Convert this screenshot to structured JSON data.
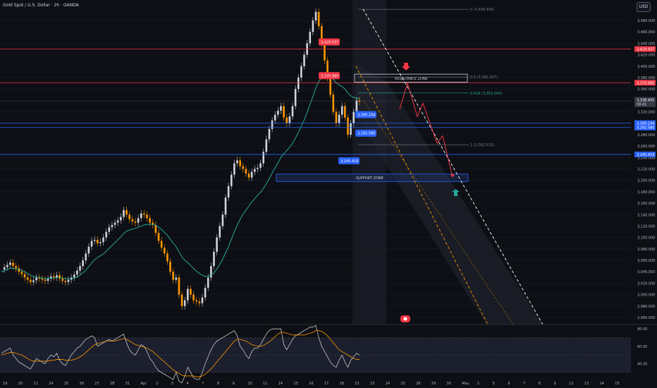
{
  "header": {
    "symbol_title": "Gold Spot / U.S. Dollar · 2h · OANDA",
    "currency": "USD"
  },
  "colors": {
    "background": "#0d0f14",
    "up_candle": "#d1d4dc",
    "down_candle": "#ff9800",
    "ema": "#26a69a",
    "resistance": "#f23645",
    "support": "#2962ff",
    "grid": "#1c2030",
    "rsi": "#c8c8c8",
    "rsi_ma": "#ff9800",
    "price_label_bg": "#363a45"
  },
  "price_scale": {
    "ticks": [
      "3,480.000",
      "3,460.000",
      "3,440.000",
      "3,420.000",
      "3,400.000",
      "3,380.000",
      "3,360.000",
      "3,340.000",
      "3,320.000",
      "3,300.000",
      "3,280.000",
      "3,260.000",
      "3,240.000",
      "3,220.000",
      "3,200.000",
      "3,180.000",
      "3,160.000",
      "3,140.000",
      "3,120.000",
      "3,100.000",
      "3,080.000",
      "3,060.000",
      "3,040.000",
      "3,020.000",
      "3,000.000",
      "2,980.000",
      "2,960.000"
    ],
    "current_price": "3,338.405",
    "countdown": "08:41"
  },
  "time_axis": [
    "19",
    "20",
    "21",
    "24",
    "25",
    "26",
    "27",
    "28",
    "31",
    "Apr",
    "2",
    "3",
    "4",
    "7",
    "8",
    "9",
    "10",
    "11",
    "14",
    "15",
    "16",
    "17",
    "18",
    "22",
    "23",
    "24",
    "25",
    "28",
    "29",
    "30",
    "May",
    "2",
    "5",
    "6",
    "7",
    "8",
    "9",
    "12",
    "13",
    "14",
    "15"
  ],
  "rsi_scale": [
    "80.00",
    "60.00",
    "40.00"
  ],
  "levels": [
    {
      "name": "resistance-high",
      "value": "3,429.937",
      "kind": "red"
    },
    {
      "name": "resistance-low",
      "value": "3,370.985",
      "kind": "red"
    },
    {
      "name": "support-high",
      "value": "3,300.244",
      "kind": "blue"
    },
    {
      "name": "support-mid",
      "value": "3,292.580",
      "kind": "blue"
    },
    {
      "name": "support-low",
      "value": "3,245.419",
      "kind": "blue"
    }
  ],
  "fib": {
    "level_0": "0 (3,499.499)",
    "level_05": "0.5 (3,381.007)",
    "level_0618": "0.618 (3,353.043)",
    "level_1": "1 (3,262.515)"
  },
  "zones": {
    "resistance": "RESISTANCE ZONE",
    "support": "SUPPORT ZONE"
  },
  "chart_data": {
    "type": "candlestick",
    "y_range": [
      2955,
      3505
    ],
    "rsi_range": [
      30,
      85
    ],
    "close": [
      3044,
      3048,
      3052,
      3056,
      3050,
      3046,
      3040,
      3036,
      3030,
      3026,
      3022,
      3025,
      3030,
      3028,
      3026,
      3024,
      3028,
      3032,
      3030,
      3034,
      3028,
      3024,
      3022,
      3026,
      3030,
      3035,
      3042,
      3050,
      3060,
      3072,
      3084,
      3094,
      3096,
      3090,
      3092,
      3100,
      3110,
      3118,
      3122,
      3126,
      3130,
      3136,
      3148,
      3140,
      3132,
      3128,
      3126,
      3134,
      3142,
      3140,
      3134,
      3126,
      3122,
      3108,
      3094,
      3082,
      3072,
      3058,
      3040,
      3026,
      3030,
      3000,
      2980,
      2990,
      3010,
      3000,
      2990,
      2988,
      2985,
      2995,
      3012,
      3030,
      3050,
      3075,
      3100,
      3120,
      3140,
      3170,
      3190,
      3210,
      3230,
      3235,
      3225,
      3220,
      3212,
      3205,
      3215,
      3220,
      3222,
      3230,
      3250,
      3272,
      3290,
      3305,
      3315,
      3322,
      3330,
      3310,
      3300,
      3312,
      3330,
      3360,
      3380,
      3400,
      3420,
      3440,
      3460,
      3480,
      3495,
      3470,
      3440,
      3410,
      3380,
      3350,
      3320,
      3300,
      3315,
      3330,
      3310,
      3280,
      3300,
      3320,
      3340,
      3338
    ],
    "ema": [
      3040,
      3042,
      3044,
      3046,
      3046,
      3045,
      3044,
      3042,
      3040,
      3037,
      3034,
      3032,
      3031,
      3030,
      3029,
      3028,
      3028,
      3029,
      3029,
      3030,
      3030,
      3029,
      3028,
      3028,
      3028,
      3029,
      3031,
      3034,
      3038,
      3043,
      3049,
      3055,
      3061,
      3065,
      3068,
      3071,
      3076,
      3081,
      3086,
      3091,
      3096,
      3101,
      3107,
      3111,
      3113,
      3115,
      3116,
      3118,
      3120,
      3122,
      3123,
      3123,
      3123,
      3121,
      3118,
      3114,
      3109,
      3104,
      3097,
      3090,
      3084,
      3075,
      3066,
      3060,
      3056,
      3051,
      3046,
      3041,
      3037,
      3034,
      3032,
      3032,
      3034,
      3038,
      3045,
      3053,
      3062,
      3073,
      3084,
      3097,
      3110,
      3122,
      3132,
      3141,
      3148,
      3155,
      3162,
      3168,
      3174,
      3179,
      3186,
      3194,
      3203,
      3213,
      3222,
      3231,
      3240,
      3247,
      3252,
      3258,
      3265,
      3274,
      3284,
      3295,
      3306,
      3319,
      3333,
      3347,
      3362,
      3373,
      3380,
      3384,
      3384,
      3382,
      3377,
      3371,
      3367,
      3364,
      3360,
      3353,
      3348,
      3345,
      3344,
      3343
    ],
    "rsi": [
      52,
      54,
      56,
      58,
      50,
      46,
      42,
      40,
      38,
      36,
      34,
      40,
      46,
      44,
      42,
      40,
      46,
      50,
      48,
      52,
      44,
      40,
      38,
      44,
      50,
      54,
      58,
      60,
      64,
      68,
      70,
      72,
      70,
      60,
      62,
      64,
      66,
      68,
      66,
      68,
      70,
      72,
      74,
      64,
      56,
      52,
      50,
      56,
      62,
      60,
      54,
      46,
      42,
      36,
      32,
      30,
      28,
      26,
      24,
      22,
      30,
      20,
      18,
      26,
      36,
      30,
      24,
      22,
      22,
      30,
      40,
      48,
      56,
      62,
      66,
      68,
      70,
      72,
      74,
      76,
      78,
      72,
      60,
      56,
      50,
      46,
      54,
      58,
      58,
      62,
      68,
      74,
      78,
      80,
      80,
      80,
      80,
      62,
      56,
      62,
      68,
      72,
      74,
      76,
      78,
      80,
      82,
      82,
      84,
      70,
      60,
      54,
      48,
      42,
      38,
      36,
      44,
      50,
      42,
      36,
      44,
      48,
      52,
      50
    ],
    "rsi_ma": [
      50,
      51,
      52,
      53,
      53,
      52,
      51,
      50,
      48,
      46,
      44,
      43,
      43,
      43,
      43,
      43,
      43,
      44,
      44,
      45,
      45,
      45,
      44,
      44,
      44,
      45,
      46,
      48,
      50,
      53,
      56,
      59,
      62,
      63,
      64,
      65,
      66,
      66,
      66,
      66,
      67,
      68,
      69,
      68,
      66,
      64,
      62,
      61,
      60,
      59,
      58,
      56,
      54,
      51,
      48,
      45,
      42,
      39,
      36,
      33,
      31,
      29,
      27,
      26,
      26,
      26,
      26,
      25,
      25,
      26,
      28,
      31,
      34,
      38,
      42,
      46,
      50,
      54,
      58,
      62,
      66,
      68,
      68,
      67,
      66,
      64,
      62,
      61,
      60,
      60,
      61,
      63,
      65,
      68,
      71,
      74,
      76,
      76,
      75,
      74,
      73,
      73,
      73,
      73,
      73,
      74,
      75,
      76,
      78,
      78,
      77,
      75,
      72,
      68,
      64,
      60,
      56,
      54,
      52,
      50,
      48,
      46,
      45,
      45
    ]
  }
}
